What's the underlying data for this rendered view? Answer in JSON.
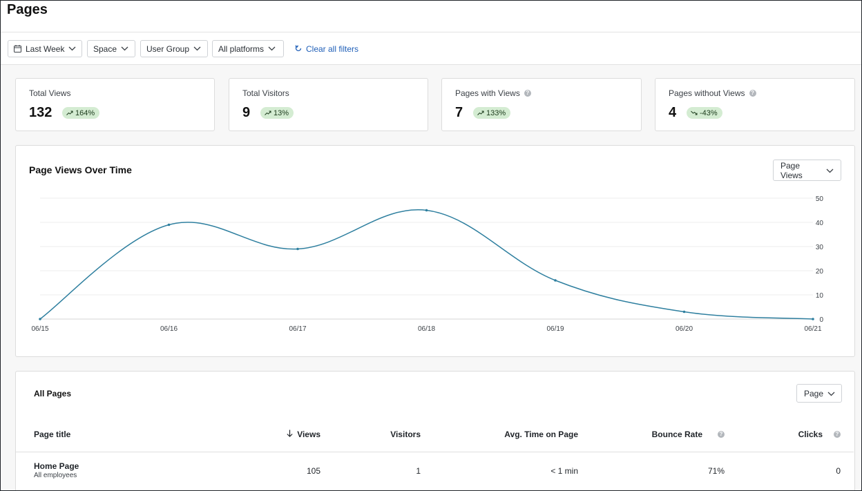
{
  "header": {
    "title": "Pages"
  },
  "filters": {
    "date": "Last Week",
    "space": "Space",
    "user_group": "User Group",
    "platform": "All platforms",
    "clear": "Clear all filters"
  },
  "stats": [
    {
      "label": "Total Views",
      "value": "132",
      "change": "164%",
      "trend": "up",
      "help": false
    },
    {
      "label": "Total Visitors",
      "value": "9",
      "change": "13%",
      "trend": "up",
      "help": false
    },
    {
      "label": "Pages with Views",
      "value": "7",
      "change": "133%",
      "trend": "up",
      "help": true
    },
    {
      "label": "Pages without Views",
      "value": "4",
      "change": "-43%",
      "trend": "down",
      "help": true
    }
  ],
  "chart": {
    "title": "Page Views Over Time",
    "metric_select": "Page Views"
  },
  "chart_data": {
    "type": "line",
    "title": "Page Views Over Time",
    "x": [
      "06/15",
      "06/16",
      "06/17",
      "06/18",
      "06/19",
      "06/20",
      "06/21"
    ],
    "series": [
      {
        "values": [
          0,
          39,
          29,
          45,
          16,
          3,
          0
        ]
      }
    ],
    "ylim": [
      0,
      50
    ],
    "yticks": [
      0,
      10,
      20,
      30,
      40,
      50
    ],
    "y_axis_side": "right",
    "grid": true,
    "color": "#2e7f9f",
    "smooth": true
  },
  "table": {
    "title": "All Pages",
    "group_select": "Page",
    "columns": {
      "title": "Page title",
      "views": "Views",
      "visitors": "Visitors",
      "avg_time": "Avg. Time on Page",
      "bounce": "Bounce Rate",
      "clicks": "Clicks"
    },
    "rows": [
      {
        "title": "Home Page",
        "subtitle": "All employees",
        "views": "105",
        "visitors": "1",
        "avg_time": "< 1 min",
        "bounce": "71%",
        "clicks": "0"
      }
    ]
  },
  "colors": {
    "accent_link": "#1f5fb8",
    "badge_bg": "#d4ecd2",
    "line": "#2e7f9f"
  }
}
